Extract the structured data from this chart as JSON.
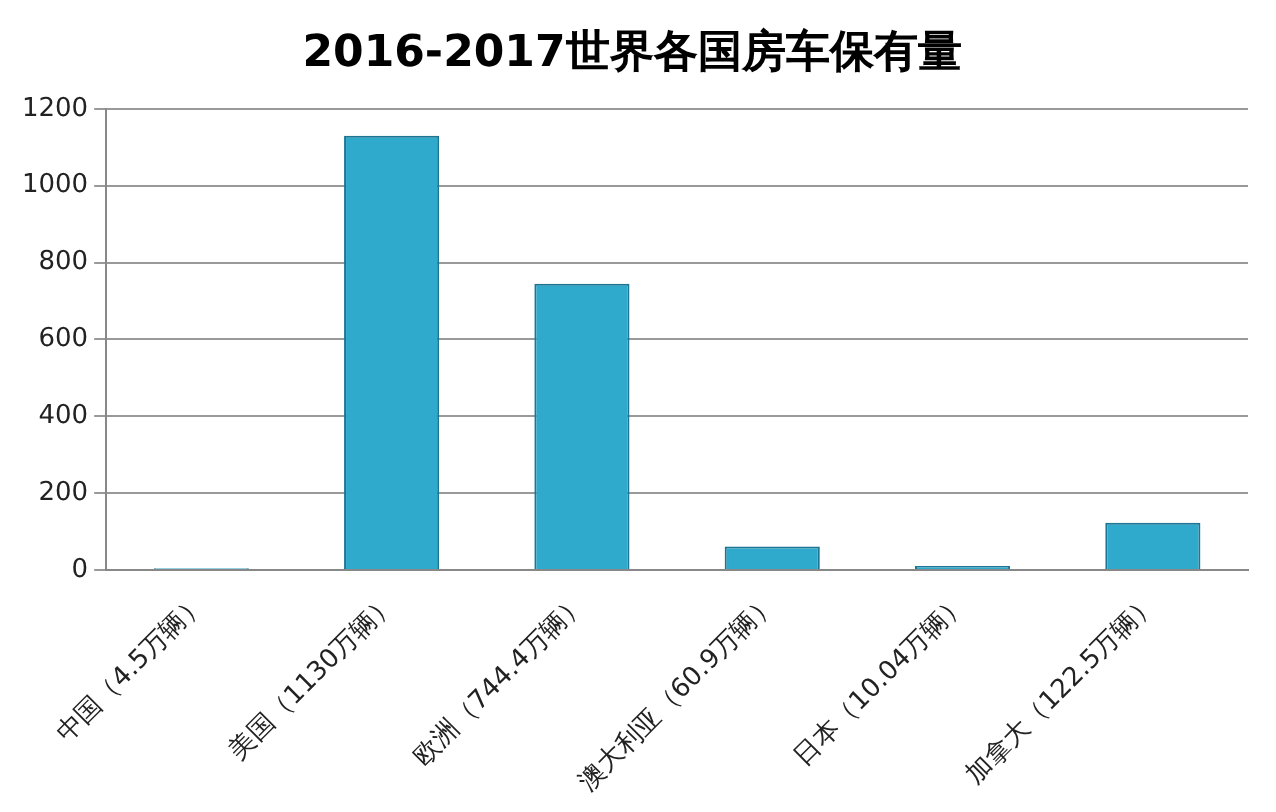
{
  "chart_data": {
    "type": "bar",
    "title": "2016-2017世界各国房车保有量",
    "categories": [
      "中国（4.5万辆）",
      "美国（1130万辆）",
      "欧洲（744.4万辆）",
      "澳大利亚（60.9万辆）",
      "日本（10.04万辆）",
      "加拿大（122.5万辆）"
    ],
    "values": [
      4.5,
      1130,
      744.4,
      60.9,
      10.04,
      122.5
    ],
    "color": "#2fa9cc",
    "ylim": [
      0,
      1200
    ],
    "yticks": [
      0,
      200,
      400,
      600,
      800,
      1000,
      1200
    ],
    "grid": "y",
    "legend": false
  }
}
